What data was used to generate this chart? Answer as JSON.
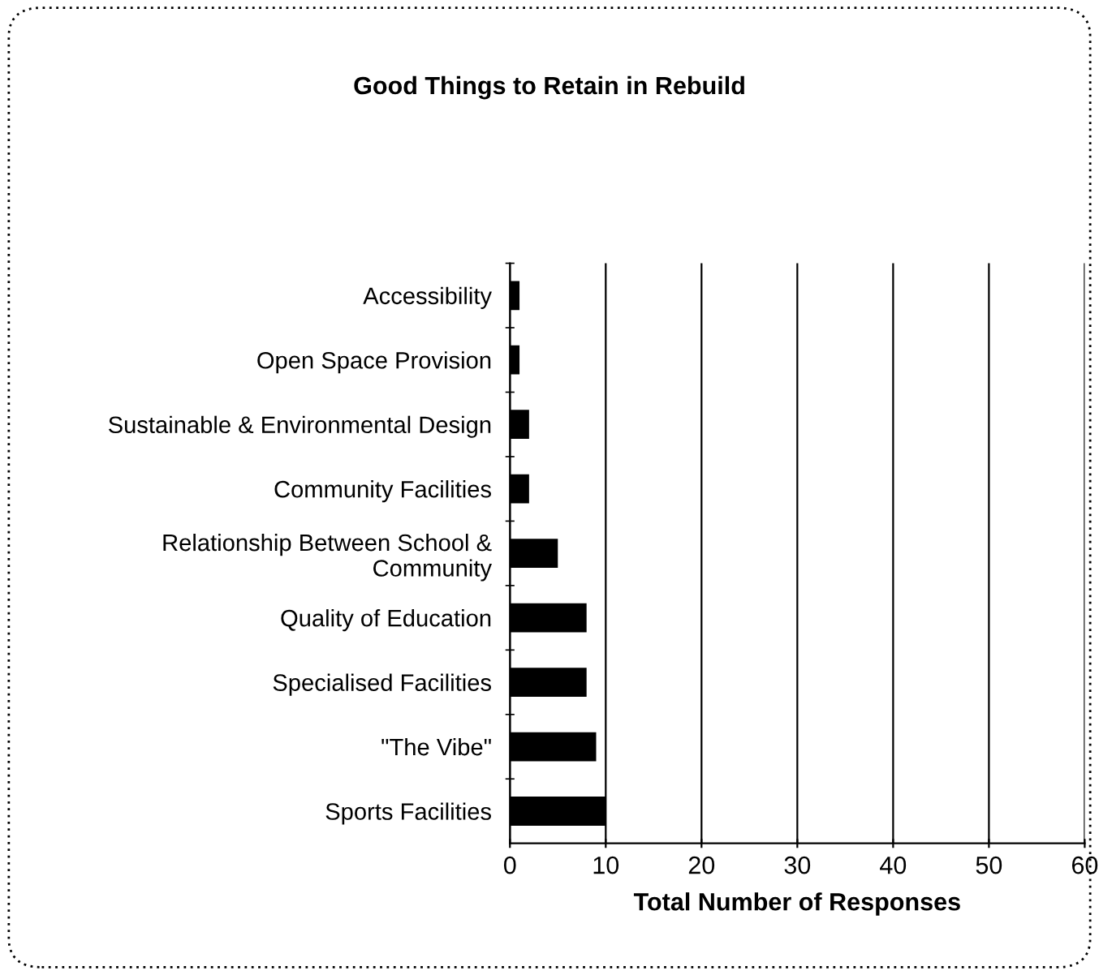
{
  "chart_data": {
    "type": "bar",
    "orientation": "horizontal",
    "title": "Good Things to Retain in Rebuild",
    "xlabel": "Total Number of Responses",
    "categories": [
      "Accessibility",
      "Open Space Provision",
      "Sustainable & Environmental Design",
      "Community Facilities",
      "Relationship Between School &\nCommunity",
      "Quality of Education",
      "Specialised Facilities",
      "\"The Vibe\"",
      "Sports Facilities"
    ],
    "values": [
      1,
      1,
      2,
      2,
      5,
      8,
      8,
      9,
      10
    ],
    "color": "#000000",
    "xlim": [
      0,
      60
    ],
    "xticks": [
      0,
      10,
      20,
      30,
      40,
      50,
      60
    ],
    "grid": "x",
    "legend": false
  }
}
